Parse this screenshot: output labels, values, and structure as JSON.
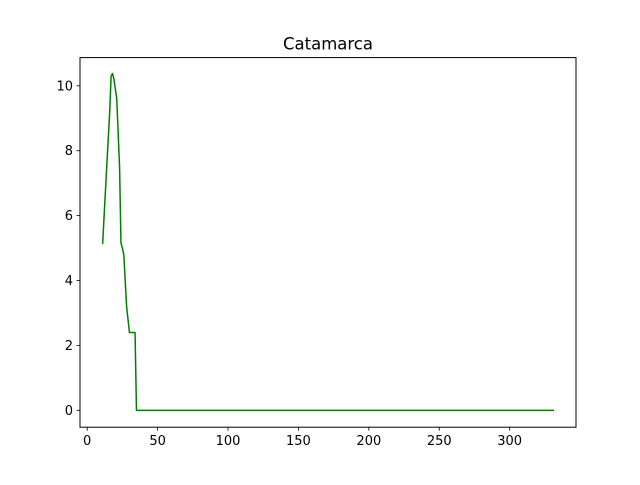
{
  "chart_data": {
    "type": "line",
    "title": "Catamarca",
    "xlabel": "",
    "ylabel": "",
    "xlim": [
      -5.1,
      347.1
    ],
    "ylim": [
      -0.52,
      10.87
    ],
    "xticks": [
      0,
      50,
      100,
      150,
      200,
      250,
      300
    ],
    "yticks": [
      0,
      2,
      4,
      6,
      8,
      10
    ],
    "grid": false,
    "legend": "none",
    "series": [
      {
        "color": "#008000",
        "x": [
          11,
          14,
          16,
          17,
          18,
          19,
          21,
          23,
          24,
          25,
          26,
          28,
          30,
          31,
          33,
          34,
          35,
          40,
          60,
          100,
          150,
          200,
          250,
          300,
          331
        ],
        "y": [
          5.15,
          7.6,
          9.2,
          10.3,
          10.38,
          10.2,
          9.6,
          7.5,
          5.15,
          5.0,
          4.8,
          3.2,
          2.4,
          2.4,
          2.4,
          2.4,
          0.0,
          0.0,
          0.0,
          0.0,
          0.0,
          0.0,
          0.0,
          0.0,
          0.0
        ]
      }
    ]
  }
}
